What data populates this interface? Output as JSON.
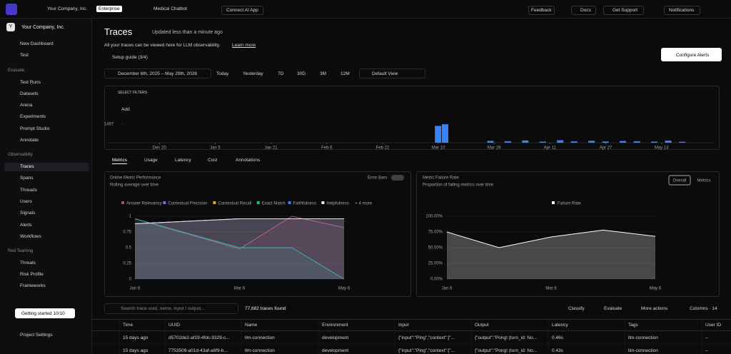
{
  "topbar": {
    "company": "Your Company, Inc.",
    "plan": "Enterprise",
    "project": "Medical Chatbot",
    "connect": "Connect AI App",
    "feedback": "Feedback",
    "docs": "Docs",
    "support": "Get Support",
    "notifications": "Notifications"
  },
  "sidebar": {
    "org": "Your Company, Inc.",
    "top": [
      "New Dashboard",
      "Test"
    ],
    "sections": [
      {
        "title": "Evaluate",
        "items": [
          "Test Runs",
          "Datasets",
          "Arena",
          "Experiments",
          "Prompt Studio",
          "Annotate"
        ]
      },
      {
        "title": "Observability",
        "items": [
          "Traces",
          "Spans",
          "Threads",
          "Users",
          "Signals",
          "Alerts",
          "Workflows"
        ]
      },
      {
        "title": "Red Teaming",
        "items": [
          "Threats",
          "Risk Profile",
          "Frameworks"
        ]
      }
    ],
    "getting_started": "Getting started 10/10",
    "settings": "Project Settings"
  },
  "header": {
    "title": "Traces",
    "updated": "Updated less than a minute ago",
    "description": "All your traces can be viewed here for LLM observability.",
    "learn_more": "Learn more",
    "setup_guide": "Setup guide (3/4)",
    "configure_alerts": "Configure Alerts"
  },
  "date_bar": {
    "range": "December 6th, 2025 – May 29th, 2026",
    "presets": [
      "Today",
      "Yesterday",
      "7D",
      "30D",
      "3M",
      "12M"
    ],
    "view": "Default View"
  },
  "filters": {
    "title": "SELECT FILTERS",
    "add": "Add"
  },
  "activity": {
    "type": "bar",
    "color": "#3b82f6",
    "xlim": [
      -1,
      173
    ],
    "ylim": [
      0,
      1600
    ],
    "yticks": [
      1497
    ],
    "xticks": [
      {
        "value": 14,
        "label": "Dec 20"
      },
      {
        "value": 30,
        "label": "Jan 5"
      },
      {
        "value": 46,
        "label": "Jan 21"
      },
      {
        "value": 62,
        "label": "Feb 6"
      },
      {
        "value": 78,
        "label": "Feb 22"
      },
      {
        "value": 94,
        "label": "Mar 10"
      },
      {
        "value": 110,
        "label": "Mar 26"
      },
      {
        "value": 126,
        "label": "Apr 11"
      },
      {
        "value": 142,
        "label": "Apr 27"
      },
      {
        "value": 158,
        "label": "May 13"
      }
    ],
    "x": [
      93,
      95,
      108,
      113,
      118,
      123,
      128,
      132,
      137,
      141,
      146,
      150,
      155,
      159,
      163
    ],
    "values": [
      1350,
      1480,
      150,
      120,
      180,
      90,
      200,
      110,
      160,
      100,
      140,
      120,
      90,
      170,
      80
    ]
  },
  "tabs": [
    "Metrics",
    "Usage",
    "Latency",
    "Cost",
    "Annotations"
  ],
  "metrics_chart": {
    "type": "line",
    "title": "Online Metric Performance",
    "subtitle": "Rolling average over time",
    "error_bars": "Error Bars",
    "more": "+ 4 more",
    "x": [
      0,
      2,
      3,
      4
    ],
    "xlim": [
      0,
      4
    ],
    "xticks": [
      {
        "value": 0,
        "label": "Jan 6"
      },
      {
        "value": 2,
        "label": "Mar 6"
      },
      {
        "value": 4,
        "label": "May 6"
      }
    ],
    "ylim": [
      0,
      1
    ],
    "yticks": [
      0,
      0.25,
      0.5,
      0.75,
      1
    ],
    "series": [
      {
        "name": "Answer Relevancy",
        "color": "#c2417a",
        "values": [
          0.96,
          0.48,
          1,
          0.82
        ]
      },
      {
        "name": "Contextual Precision",
        "color": "#8b5cf6",
        "values": [
          0.88,
          0.96,
          0.96,
          0.96
        ]
      },
      {
        "name": "Contextual Recall",
        "color": "#f59e0b",
        "values": [
          0.88,
          0.96,
          0.96,
          0.96
        ]
      },
      {
        "name": "Exact Match",
        "color": "#14b8a6",
        "values": [
          0.96,
          0.5,
          0.5,
          0
        ]
      },
      {
        "name": "Faithfulness",
        "color": "#3b82f6",
        "values": [
          0.88,
          0.96,
          0.96,
          0.96
        ]
      },
      {
        "name": "Helpfulness",
        "color": "#e5e7eb",
        "values": [
          0.88,
          0.96,
          0.96,
          0.96
        ]
      }
    ]
  },
  "failure_chart": {
    "type": "area",
    "title": "Metric Failure Rate",
    "subtitle": "Proportion of failing metrics over time",
    "toggle": [
      "Overall",
      "Metrics"
    ],
    "x": [
      0,
      1,
      2,
      3,
      4
    ],
    "xlim": [
      0,
      4
    ],
    "xticks": [
      {
        "value": 0,
        "label": "Jan 6"
      },
      {
        "value": 2,
        "label": "Mar 6"
      },
      {
        "value": 4,
        "label": "May 6"
      }
    ],
    "ylim": [
      0,
      100
    ],
    "yticks": [
      {
        "value": 0,
        "label": "0.00%"
      },
      {
        "value": 25,
        "label": "25.00%"
      },
      {
        "value": 50,
        "label": "50.00%"
      },
      {
        "value": 75,
        "label": "75.00%"
      },
      {
        "value": 100,
        "label": "100.00%"
      }
    ],
    "series": [
      {
        "name": "Failure Rate",
        "color": "#ffffff",
        "values": [
          75,
          50,
          67,
          78,
          68
        ]
      }
    ]
  },
  "table": {
    "search": "Search trace uuid, name, input / output...",
    "count": "77,682 traces found",
    "actions": [
      "Classify",
      "Evaluate",
      "More actions",
      "Columns · 14"
    ],
    "columns": [
      "Time",
      "UUID",
      "Name",
      "Environment",
      "Input",
      "Output",
      "Latency",
      "Tags",
      "User ID"
    ],
    "rows": [
      [
        "15 days ago",
        "d5702de2-af19-4fdc-9329-c...",
        "llm-connection",
        "development",
        "{\"input\":\"Ping\",\"context\":[\"...",
        "{\"output\":\"Pong! (turn_id: No...",
        "0.46s",
        "llm-connection",
        "–"
      ],
      [
        "15 days ago",
        "7753509-a01d-43af-a6f9-b...",
        "llm-connection",
        "development",
        "{\"input\":\"Ping\",\"context\":[\"...",
        "{\"output\":\"Pong! (turn_id: No...",
        "0.43s",
        "llm-connection",
        "–"
      ]
    ]
  }
}
